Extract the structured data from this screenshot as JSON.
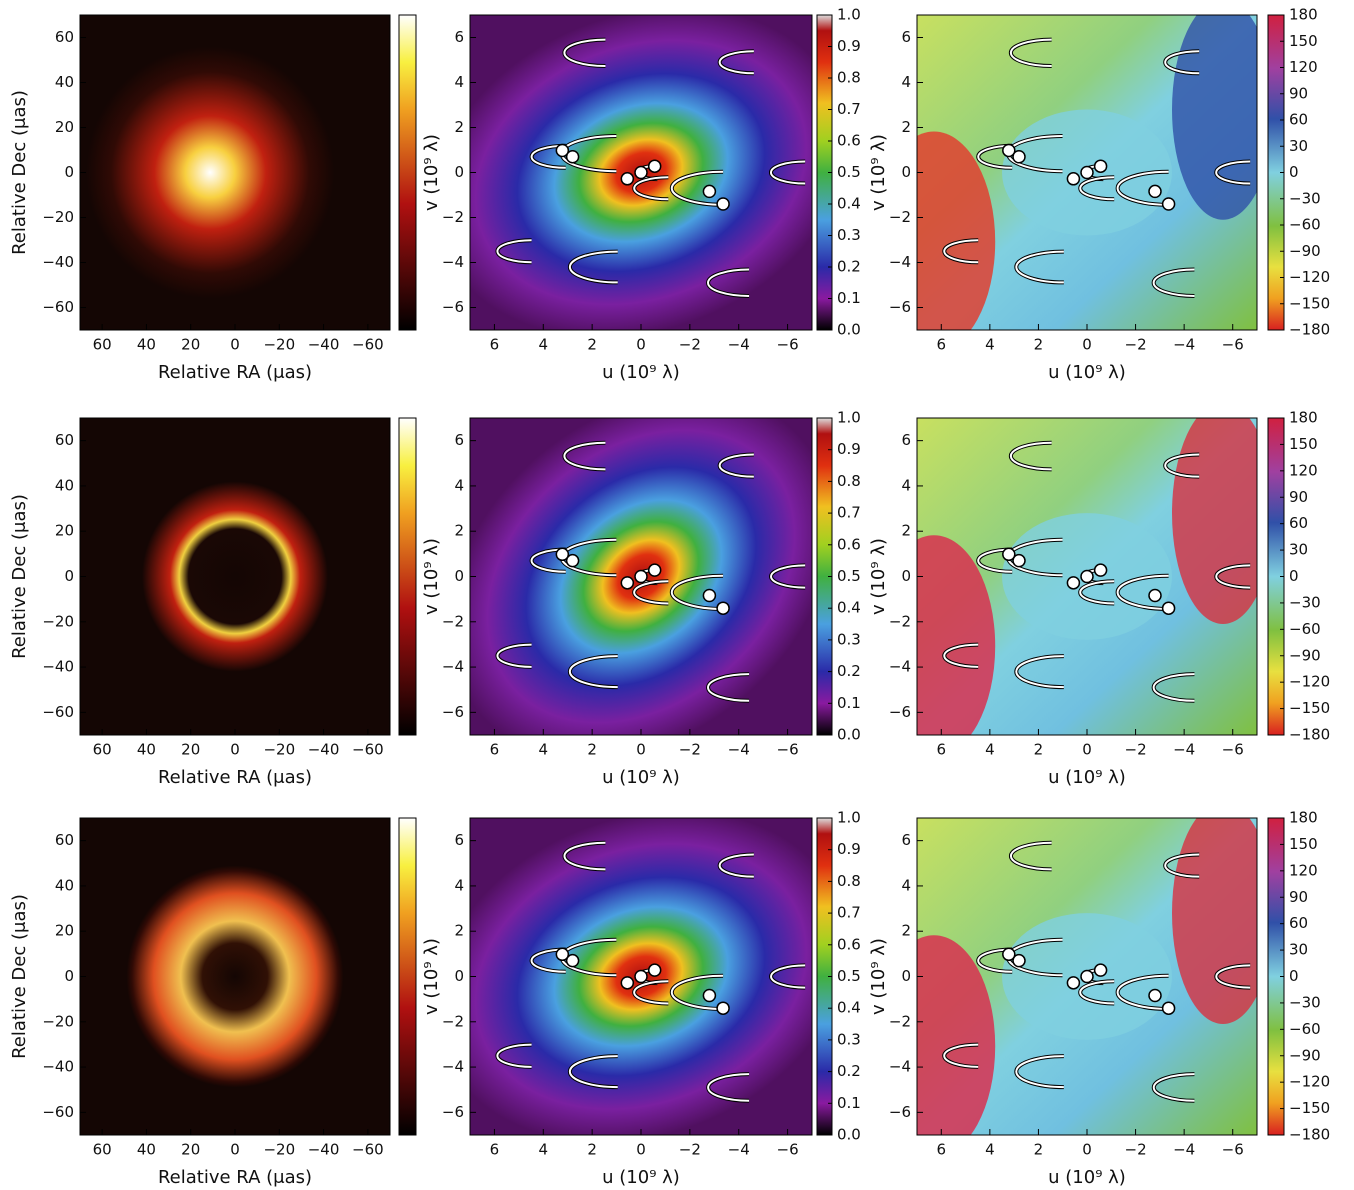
{
  "chart_data": [
    {
      "type": "image",
      "colormap": "hot",
      "xlabel": "Relative RA (μas)",
      "ylabel": "Relative Dec (μas)",
      "xlim": [
        70,
        -70
      ],
      "ylim": [
        -70,
        70
      ],
      "xticks": [
        60,
        40,
        20,
        0,
        {
          "value": -20,
          "label": "−20"
        },
        {
          "value": -40,
          "label": "−40"
        },
        {
          "value": -60,
          "label": "−60"
        }
      ],
      "yticks": [
        {
          "value": -60,
          "label": "−60"
        },
        {
          "value": -40,
          "label": "−40"
        },
        {
          "value": -20,
          "label": "−20"
        },
        0,
        20,
        40,
        60
      ]
    },
    {
      "type": "image",
      "colormap": "jet",
      "xlabel": "u (10⁹ λ)",
      "ylabel": "v (10⁹ λ)",
      "xlim": [
        7,
        -7
      ],
      "ylim": [
        -7,
        7
      ],
      "xticks": [
        6,
        4,
        2,
        0,
        {
          "value": -2,
          "label": "−2"
        },
        {
          "value": -4,
          "label": "−4"
        },
        {
          "value": -6,
          "label": "−6"
        }
      ],
      "yticks": [
        {
          "value": -6,
          "label": "−6"
        },
        {
          "value": -4,
          "label": "−4"
        },
        {
          "value": -2,
          "label": "−2"
        },
        0,
        2,
        4,
        6
      ],
      "clim": [
        0,
        1
      ],
      "cticks": [
        {
          "value": 0,
          "label": "0.0"
        },
        0.1,
        0.2,
        0.3,
        0.4,
        0.5,
        0.6,
        0.7,
        0.8,
        0.9,
        {
          "value": 1,
          "label": "1.0"
        }
      ]
    },
    {
      "type": "image",
      "colormap": "hsv",
      "xlabel": "u (10⁹ λ)",
      "ylabel": "v (10⁹ λ)",
      "xlim": [
        7,
        -7
      ],
      "ylim": [
        -7,
        7
      ],
      "xticks": [
        6,
        4,
        2,
        0,
        {
          "value": -2,
          "label": "−2"
        },
        {
          "value": -4,
          "label": "−4"
        },
        {
          "value": -6,
          "label": "−6"
        }
      ],
      "yticks": [
        {
          "value": -6,
          "label": "−6"
        },
        {
          "value": -4,
          "label": "−4"
        },
        {
          "value": -2,
          "label": "−2"
        },
        0,
        2,
        4,
        6
      ],
      "clim": [
        -180,
        180
      ],
      "cticks": [
        {
          "value": -180,
          "label": "−180"
        },
        {
          "value": -150,
          "label": "−150"
        },
        {
          "value": -120,
          "label": "−120"
        },
        {
          "value": -90,
          "label": "−90"
        },
        {
          "value": -60,
          "label": "−60"
        },
        {
          "value": -30,
          "label": "−30"
        },
        0,
        30,
        60,
        90,
        120,
        150,
        180
      ]
    },
    {
      "type": "image",
      "colormap": "hot",
      "xlabel": "Relative RA (μas)",
      "ylabel": "Relative Dec (μas)",
      "xlim": [
        70,
        -70
      ],
      "ylim": [
        -70,
        70
      ],
      "xticks": [
        60,
        40,
        20,
        0,
        {
          "value": -20,
          "label": "−20"
        },
        {
          "value": -40,
          "label": "−40"
        },
        {
          "value": -60,
          "label": "−60"
        }
      ],
      "yticks": [
        {
          "value": -60,
          "label": "−60"
        },
        {
          "value": -40,
          "label": "−40"
        },
        {
          "value": -20,
          "label": "−20"
        },
        0,
        20,
        40,
        60
      ]
    },
    {
      "type": "image",
      "colormap": "jet",
      "xlabel": "u (10⁹ λ)",
      "ylabel": "v (10⁹ λ)",
      "xlim": [
        7,
        -7
      ],
      "ylim": [
        -7,
        7
      ],
      "xticks": [
        6,
        4,
        2,
        0,
        {
          "value": -2,
          "label": "−2"
        },
        {
          "value": -4,
          "label": "−4"
        },
        {
          "value": -6,
          "label": "−6"
        }
      ],
      "yticks": [
        {
          "value": -6,
          "label": "−6"
        },
        {
          "value": -4,
          "label": "−4"
        },
        {
          "value": -2,
          "label": "−2"
        },
        0,
        2,
        4,
        6
      ],
      "clim": [
        0,
        1
      ],
      "cticks": [
        {
          "value": 0,
          "label": "0.0"
        },
        0.1,
        0.2,
        0.3,
        0.4,
        0.5,
        0.6,
        0.7,
        0.8,
        0.9,
        {
          "value": 1,
          "label": "1.0"
        }
      ]
    },
    {
      "type": "image",
      "colormap": "hsv",
      "xlabel": "u (10⁹ λ)",
      "ylabel": "v (10⁹ λ)",
      "xlim": [
        7,
        -7
      ],
      "ylim": [
        -7,
        7
      ],
      "xticks": [
        6,
        4,
        2,
        0,
        {
          "value": -2,
          "label": "−2"
        },
        {
          "value": -4,
          "label": "−4"
        },
        {
          "value": -6,
          "label": "−6"
        }
      ],
      "yticks": [
        {
          "value": -6,
          "label": "−6"
        },
        {
          "value": -4,
          "label": "−4"
        },
        {
          "value": -2,
          "label": "−2"
        },
        0,
        2,
        4,
        6
      ],
      "clim": [
        -180,
        180
      ],
      "cticks": [
        {
          "value": -180,
          "label": "−180"
        },
        {
          "value": -150,
          "label": "−150"
        },
        {
          "value": -120,
          "label": "−120"
        },
        {
          "value": -90,
          "label": "−90"
        },
        {
          "value": -60,
          "label": "−60"
        },
        {
          "value": -30,
          "label": "−30"
        },
        0,
        30,
        60,
        90,
        120,
        150,
        180
      ]
    },
    {
      "type": "image",
      "colormap": "hot",
      "xlabel": "Relative RA (μas)",
      "ylabel": "Relative Dec (μas)",
      "xlim": [
        70,
        -70
      ],
      "ylim": [
        -70,
        70
      ],
      "xticks": [
        60,
        40,
        20,
        0,
        {
          "value": -20,
          "label": "−20"
        },
        {
          "value": -40,
          "label": "−40"
        },
        {
          "value": -60,
          "label": "−60"
        }
      ],
      "yticks": [
        {
          "value": -60,
          "label": "−60"
        },
        {
          "value": -40,
          "label": "−40"
        },
        {
          "value": -20,
          "label": "−20"
        },
        0,
        20,
        40,
        60
      ]
    },
    {
      "type": "image",
      "colormap": "jet",
      "xlabel": "u (10⁹ λ)",
      "ylabel": "v (10⁹ λ)",
      "xlim": [
        7,
        -7
      ],
      "ylim": [
        -7,
        7
      ],
      "xticks": [
        6,
        4,
        2,
        0,
        {
          "value": -2,
          "label": "−2"
        },
        {
          "value": -4,
          "label": "−4"
        },
        {
          "value": -6,
          "label": "−6"
        }
      ],
      "yticks": [
        {
          "value": -6,
          "label": "−6"
        },
        {
          "value": -4,
          "label": "−4"
        },
        {
          "value": -2,
          "label": "−2"
        },
        0,
        2,
        4,
        6
      ],
      "clim": [
        0,
        1
      ],
      "cticks": [
        {
          "value": 0,
          "label": "0.0"
        },
        0.1,
        0.2,
        0.3,
        0.4,
        0.5,
        0.6,
        0.7,
        0.8,
        0.9,
        {
          "value": 1,
          "label": "1.0"
        }
      ]
    },
    {
      "type": "image",
      "colormap": "hsv",
      "xlabel": "u (10⁹ λ)",
      "ylabel": "v (10⁹ λ)",
      "xlim": [
        7,
        -7
      ],
      "ylim": [
        -7,
        7
      ],
      "xticks": [
        6,
        4,
        2,
        0,
        {
          "value": -2,
          "label": "−2"
        },
        {
          "value": -4,
          "label": "−4"
        },
        {
          "value": -6,
          "label": "−6"
        }
      ],
      "yticks": [
        {
          "value": -6,
          "label": "−6"
        },
        {
          "value": -4,
          "label": "−4"
        },
        {
          "value": -2,
          "label": "−2"
        },
        0,
        2,
        4,
        6
      ],
      "clim": [
        -180,
        180
      ],
      "cticks": [
        {
          "value": -180,
          "label": "−180"
        },
        {
          "value": -150,
          "label": "−150"
        },
        {
          "value": -120,
          "label": "−120"
        },
        {
          "value": -90,
          "label": "−90"
        },
        {
          "value": -60,
          "label": "−60"
        },
        {
          "value": -30,
          "label": "−30"
        },
        0,
        30,
        60,
        90,
        120,
        150,
        180
      ]
    }
  ]
}
